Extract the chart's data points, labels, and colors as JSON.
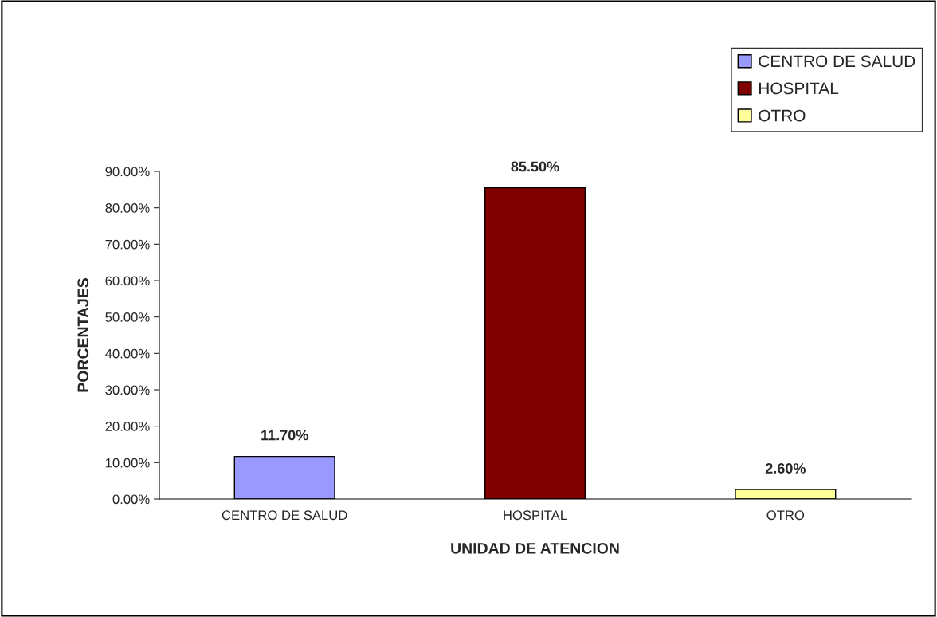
{
  "chart_data": {
    "type": "bar",
    "xlabel": "UNIDAD DE ATENCION",
    "ylabel": "PORCENTAJES",
    "categories": [
      "CENTRO DE SALUD",
      "HOSPITAL",
      "OTRO"
    ],
    "series": [
      {
        "name": "CENTRO DE SALUD",
        "color": "#9999ff",
        "values": [
          11.7,
          null,
          null
        ],
        "value_labels": [
          "11.70%",
          null,
          null
        ]
      },
      {
        "name": "HOSPITAL",
        "color": "#800000",
        "values": [
          null,
          85.5,
          null
        ],
        "value_labels": [
          null,
          "85.50%",
          null
        ]
      },
      {
        "name": "OTRO",
        "color": "#ffff99",
        "values": [
          null,
          null,
          2.6
        ],
        "value_labels": [
          null,
          null,
          "2.60%"
        ]
      }
    ],
    "ylim": [
      0,
      90
    ],
    "yticks": [
      {
        "value": 0,
        "label": "0.00%"
      },
      {
        "value": 10,
        "label": "10.00%"
      },
      {
        "value": 20,
        "label": "20.00%"
      },
      {
        "value": 30,
        "label": "30.00%"
      },
      {
        "value": 40,
        "label": "40.00%"
      },
      {
        "value": 50,
        "label": "50.00%"
      },
      {
        "value": 60,
        "label": "60.00%"
      },
      {
        "value": 70,
        "label": "70.00%"
      },
      {
        "value": 80,
        "label": "80.00%"
      },
      {
        "value": 90,
        "label": "90.00%"
      }
    ],
    "grid": false,
    "legend": "top right"
  }
}
